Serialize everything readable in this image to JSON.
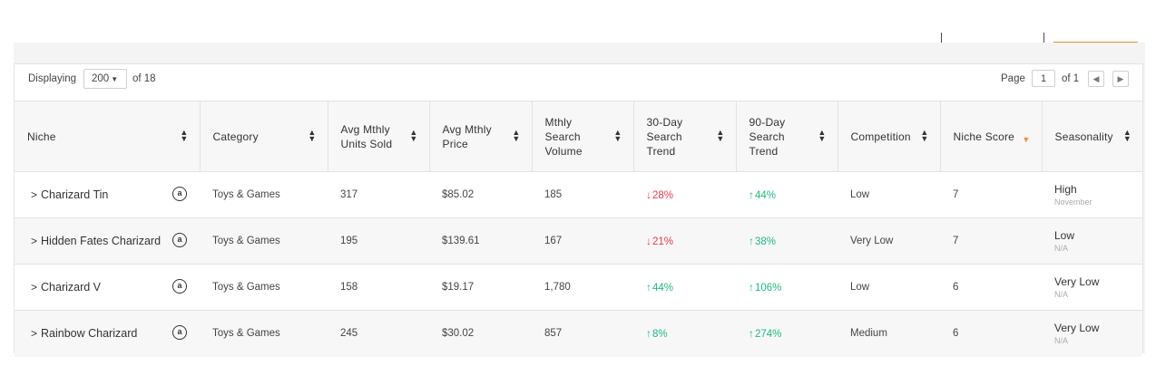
{
  "toolbar": {
    "displaying_label": "Displaying",
    "displaying_value": "200",
    "of_total": "of 18",
    "page_label": "Page",
    "page_value": "1",
    "page_of": "of 1"
  },
  "columns": [
    "Niche",
    "Category",
    "Avg Mthly Units Sold",
    "Avg Mthly Price",
    "Mthly Search Volume",
    "30-Day Search Trend",
    "90-Day Search Trend",
    "Competition",
    "Niche Score",
    "Seasonality"
  ],
  "rows": [
    {
      "niche": "Charizard Tin",
      "category": "Toys & Games",
      "units_sold": "317",
      "price": "$85.02",
      "search_volume": "185",
      "trend_30": "28%",
      "trend_30_dir": "down",
      "trend_90": "44%",
      "trend_90_dir": "up",
      "competition": "Low",
      "niche_score": "7",
      "seasonality": "High",
      "seasonality_sub": "November"
    },
    {
      "niche": "Hidden Fates Charizard",
      "category": "Toys & Games",
      "units_sold": "195",
      "price": "$139.61",
      "search_volume": "167",
      "trend_30": "21%",
      "trend_30_dir": "down",
      "trend_90": "38%",
      "trend_90_dir": "up",
      "competition": "Very Low",
      "niche_score": "7",
      "seasonality": "Low",
      "seasonality_sub": "N/A"
    },
    {
      "niche": "Charizard V",
      "category": "Toys & Games",
      "units_sold": "158",
      "price": "$19.17",
      "search_volume": "1,780",
      "trend_30": "44%",
      "trend_30_dir": "up",
      "trend_90": "106%",
      "trend_90_dir": "up",
      "competition": "Low",
      "niche_score": "6",
      "seasonality": "Very Low",
      "seasonality_sub": "N/A"
    },
    {
      "niche": "Rainbow Charizard",
      "category": "Toys & Games",
      "units_sold": "245",
      "price": "$30.02",
      "search_volume": "857",
      "trend_30": "8%",
      "trend_30_dir": "up",
      "trend_90": "274%",
      "trend_90_dir": "up",
      "competition": "Medium",
      "niche_score": "6",
      "seasonality": "Very Low",
      "seasonality_sub": "N/A"
    }
  ],
  "colors": {
    "accent": "#f28b30",
    "trend_up": "#1fba7a",
    "trend_down": "#e8394a"
  },
  "icons": {
    "amazon": "amazon-icon",
    "sort": "sort-icon",
    "expand": "chevron-right-icon"
  }
}
